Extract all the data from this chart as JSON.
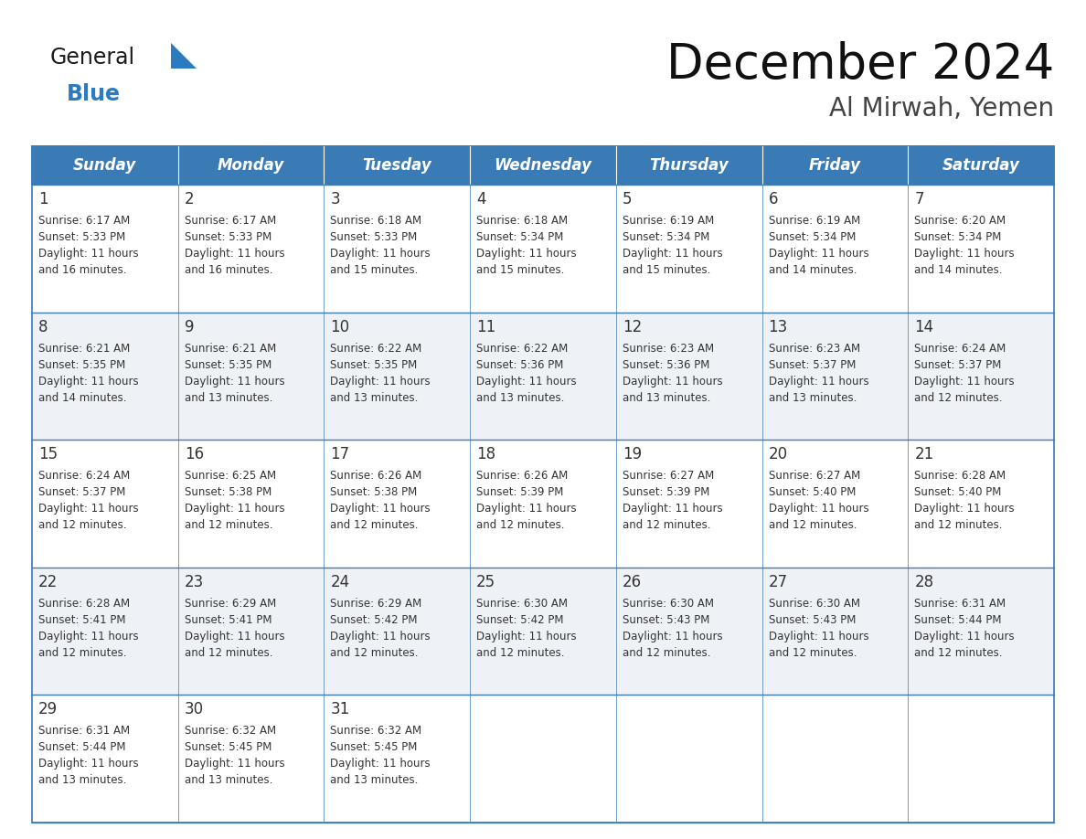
{
  "title": "December 2024",
  "subtitle": "Al Mirwah, Yemen",
  "header_color": "#3a7ab5",
  "header_text_color": "#ffffff",
  "cell_bg_color": "#ffffff",
  "alt_cell_bg_color": "#eef2f7",
  "border_color": "#3a7ab5",
  "text_color": "#333333",
  "days_of_week": [
    "Sunday",
    "Monday",
    "Tuesday",
    "Wednesday",
    "Thursday",
    "Friday",
    "Saturday"
  ],
  "weeks": [
    {
      "days": [
        {
          "num": "1",
          "sunrise": "6:17 AM",
          "sunset": "5:33 PM",
          "daylight": "11 hours and 16 minutes."
        },
        {
          "num": "2",
          "sunrise": "6:17 AM",
          "sunset": "5:33 PM",
          "daylight": "11 hours and 16 minutes."
        },
        {
          "num": "3",
          "sunrise": "6:18 AM",
          "sunset": "5:33 PM",
          "daylight": "11 hours and 15 minutes."
        },
        {
          "num": "4",
          "sunrise": "6:18 AM",
          "sunset": "5:34 PM",
          "daylight": "11 hours and 15 minutes."
        },
        {
          "num": "5",
          "sunrise": "6:19 AM",
          "sunset": "5:34 PM",
          "daylight": "11 hours and 15 minutes."
        },
        {
          "num": "6",
          "sunrise": "6:19 AM",
          "sunset": "5:34 PM",
          "daylight": "11 hours and 14 minutes."
        },
        {
          "num": "7",
          "sunrise": "6:20 AM",
          "sunset": "5:34 PM",
          "daylight": "11 hours and 14 minutes."
        }
      ]
    },
    {
      "days": [
        {
          "num": "8",
          "sunrise": "6:21 AM",
          "sunset": "5:35 PM",
          "daylight": "11 hours and 14 minutes."
        },
        {
          "num": "9",
          "sunrise": "6:21 AM",
          "sunset": "5:35 PM",
          "daylight": "11 hours and 13 minutes."
        },
        {
          "num": "10",
          "sunrise": "6:22 AM",
          "sunset": "5:35 PM",
          "daylight": "11 hours and 13 minutes."
        },
        {
          "num": "11",
          "sunrise": "6:22 AM",
          "sunset": "5:36 PM",
          "daylight": "11 hours and 13 minutes."
        },
        {
          "num": "12",
          "sunrise": "6:23 AM",
          "sunset": "5:36 PM",
          "daylight": "11 hours and 13 minutes."
        },
        {
          "num": "13",
          "sunrise": "6:23 AM",
          "sunset": "5:37 PM",
          "daylight": "11 hours and 13 minutes."
        },
        {
          "num": "14",
          "sunrise": "6:24 AM",
          "sunset": "5:37 PM",
          "daylight": "11 hours and 12 minutes."
        }
      ]
    },
    {
      "days": [
        {
          "num": "15",
          "sunrise": "6:24 AM",
          "sunset": "5:37 PM",
          "daylight": "11 hours and 12 minutes."
        },
        {
          "num": "16",
          "sunrise": "6:25 AM",
          "sunset": "5:38 PM",
          "daylight": "11 hours and 12 minutes."
        },
        {
          "num": "17",
          "sunrise": "6:26 AM",
          "sunset": "5:38 PM",
          "daylight": "11 hours and 12 minutes."
        },
        {
          "num": "18",
          "sunrise": "6:26 AM",
          "sunset": "5:39 PM",
          "daylight": "11 hours and 12 minutes."
        },
        {
          "num": "19",
          "sunrise": "6:27 AM",
          "sunset": "5:39 PM",
          "daylight": "11 hours and 12 minutes."
        },
        {
          "num": "20",
          "sunrise": "6:27 AM",
          "sunset": "5:40 PM",
          "daylight": "11 hours and 12 minutes."
        },
        {
          "num": "21",
          "sunrise": "6:28 AM",
          "sunset": "5:40 PM",
          "daylight": "11 hours and 12 minutes."
        }
      ]
    },
    {
      "days": [
        {
          "num": "22",
          "sunrise": "6:28 AM",
          "sunset": "5:41 PM",
          "daylight": "11 hours and 12 minutes."
        },
        {
          "num": "23",
          "sunrise": "6:29 AM",
          "sunset": "5:41 PM",
          "daylight": "11 hours and 12 minutes."
        },
        {
          "num": "24",
          "sunrise": "6:29 AM",
          "sunset": "5:42 PM",
          "daylight": "11 hours and 12 minutes."
        },
        {
          "num": "25",
          "sunrise": "6:30 AM",
          "sunset": "5:42 PM",
          "daylight": "11 hours and 12 minutes."
        },
        {
          "num": "26",
          "sunrise": "6:30 AM",
          "sunset": "5:43 PM",
          "daylight": "11 hours and 12 minutes."
        },
        {
          "num": "27",
          "sunrise": "6:30 AM",
          "sunset": "5:43 PM",
          "daylight": "11 hours and 12 minutes."
        },
        {
          "num": "28",
          "sunrise": "6:31 AM",
          "sunset": "5:44 PM",
          "daylight": "11 hours and 12 minutes."
        }
      ]
    },
    {
      "days": [
        {
          "num": "29",
          "sunrise": "6:31 AM",
          "sunset": "5:44 PM",
          "daylight": "11 hours and 13 minutes."
        },
        {
          "num": "30",
          "sunrise": "6:32 AM",
          "sunset": "5:45 PM",
          "daylight": "11 hours and 13 minutes."
        },
        {
          "num": "31",
          "sunrise": "6:32 AM",
          "sunset": "5:45 PM",
          "daylight": "11 hours and 13 minutes."
        },
        null,
        null,
        null,
        null
      ]
    }
  ],
  "logo_text1": "General",
  "logo_text2": "Blue",
  "logo_color1": "#1a1a1a",
  "logo_color2": "#2a7bbf",
  "logo_triangle_color": "#2a7bbf",
  "title_fontsize": 38,
  "subtitle_fontsize": 20,
  "header_fontsize": 12,
  "day_num_fontsize": 12,
  "cell_text_fontsize": 8.5
}
